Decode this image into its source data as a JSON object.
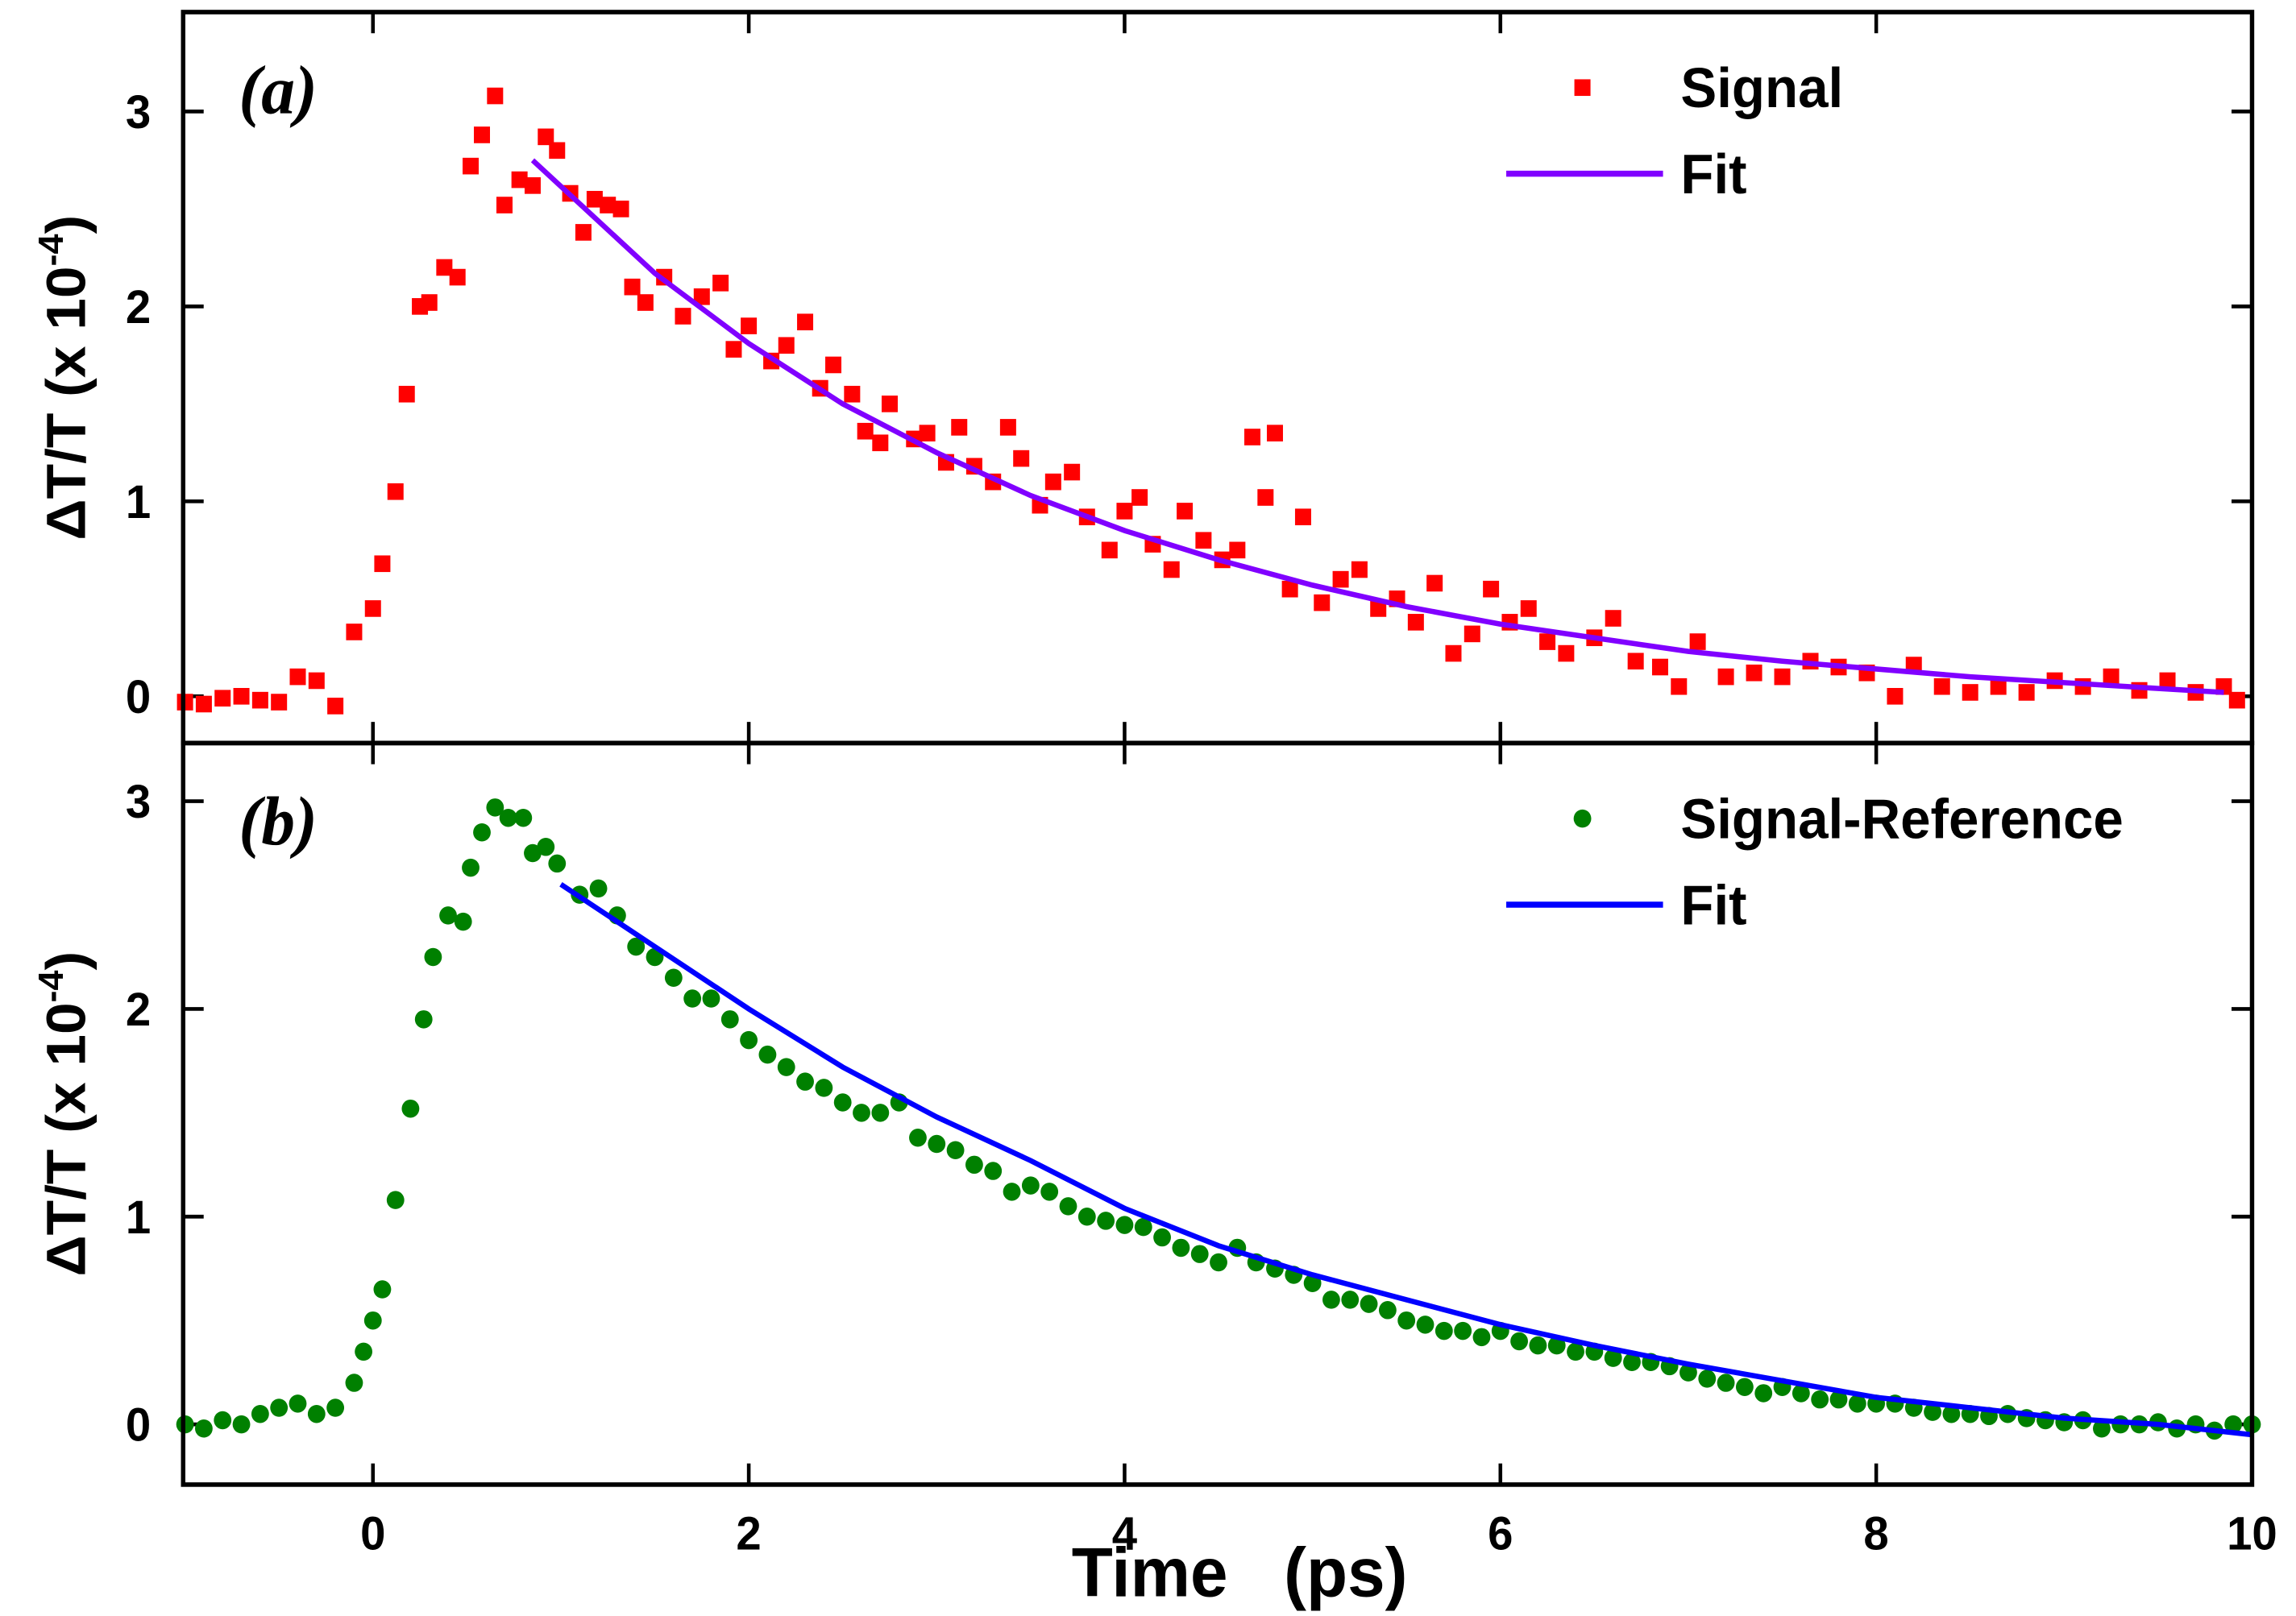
{
  "chart_data": [
    {
      "type": "scatter",
      "label": "(a)",
      "ylabel": {
        "text": "ΔT/T  (x  10",
        "superscript": "-4",
        "close": ")"
      },
      "xlim": [
        -1.01,
        10
      ],
      "xticks": [
        0,
        2,
        4,
        6,
        8,
        10
      ],
      "ylim": [
        -0.24,
        3.51
      ],
      "yticks": [
        0,
        1,
        2,
        3
      ],
      "legend": "upper right",
      "series": [
        {
          "name": "Signal",
          "color": "#ff0000",
          "marker": "square",
          "x": [
            -1,
            -0.9,
            -0.8,
            -0.7,
            -0.6,
            -0.5,
            -0.4,
            -0.3,
            -0.2,
            -0.1,
            0,
            0.05,
            0.12,
            0.18,
            0.25,
            0.3,
            0.38,
            0.45,
            0.52,
            0.58,
            0.65,
            0.7,
            0.78,
            0.85,
            0.92,
            0.98,
            1.05,
            1.12,
            1.18,
            1.25,
            1.32,
            1.38,
            1.45,
            1.55,
            1.65,
            1.75,
            1.85,
            1.92,
            2.0,
            2.12,
            2.2,
            2.3,
            2.38,
            2.45,
            2.55,
            2.62,
            2.7,
            2.75,
            2.88,
            2.95,
            3.05,
            3.12,
            3.2,
            3.3,
            3.38,
            3.45,
            3.55,
            3.62,
            3.72,
            3.8,
            3.92,
            4.0,
            4.08,
            4.15,
            4.25,
            4.32,
            4.42,
            4.52,
            4.6,
            4.68,
            4.75,
            4.8,
            4.88,
            4.95,
            5.05,
            5.15,
            5.25,
            5.35,
            5.45,
            5.55,
            5.65,
            5.75,
            5.85,
            5.95,
            6.05,
            6.15,
            6.25,
            6.35,
            6.5,
            6.6,
            6.72,
            6.85,
            6.95,
            7.05,
            7.2,
            7.35,
            7.5,
            7.65,
            7.8,
            7.95,
            8.1,
            8.2,
            8.35,
            8.5,
            8.65,
            8.8,
            8.95,
            9.1,
            9.25,
            9.4,
            9.55,
            9.7,
            9.85,
            9.92
          ],
          "values": [
            -0.03,
            -0.04,
            -0.01,
            0,
            -0.02,
            -0.03,
            0.1,
            0.08,
            -0.05,
            0.33,
            0.45,
            0.68,
            1.05,
            1.55,
            2.0,
            2.02,
            2.2,
            2.15,
            2.72,
            2.88,
            3.08,
            2.52,
            2.65,
            2.62,
            2.87,
            2.8,
            2.58,
            2.38,
            2.55,
            2.52,
            2.5,
            2.1,
            2.02,
            2.15,
            1.95,
            2.05,
            2.12,
            1.78,
            1.9,
            1.72,
            1.8,
            1.92,
            1.58,
            1.7,
            1.55,
            1.36,
            1.3,
            1.5,
            1.32,
            1.35,
            1.2,
            1.38,
            1.18,
            1.1,
            1.38,
            1.22,
            0.98,
            1.1,
            1.15,
            0.92,
            0.75,
            0.95,
            1.02,
            0.78,
            0.65,
            0.95,
            0.8,
            0.7,
            0.75,
            1.33,
            1.02,
            1.35,
            0.55,
            0.92,
            0.48,
            0.6,
            0.65,
            0.45,
            0.5,
            0.38,
            0.58,
            0.22,
            0.32,
            0.55,
            0.38,
            0.45,
            0.28,
            0.22,
            0.3,
            0.4,
            0.18,
            0.15,
            0.05,
            0.28,
            0.1,
            0.12,
            0.1,
            0.18,
            0.15,
            0.12,
            0.0,
            0.16,
            0.05,
            0.02,
            0.05,
            0.02,
            0.08,
            0.05,
            0.1,
            0.03,
            0.08,
            0.02,
            0.05,
            -0.02
          ]
        },
        {
          "name": "Fit",
          "color": "#8000ff",
          "marker": "line",
          "x": [
            0.85,
            1.5,
            2,
            2.5,
            3,
            3.5,
            4,
            4.5,
            5,
            5.5,
            6,
            6.5,
            7,
            7.5,
            8,
            8.5,
            9,
            9.5,
            9.85
          ],
          "values": [
            2.75,
            2.17,
            1.81,
            1.5,
            1.25,
            1.03,
            0.85,
            0.7,
            0.57,
            0.46,
            0.37,
            0.3,
            0.23,
            0.18,
            0.14,
            0.1,
            0.07,
            0.04,
            0.02
          ]
        }
      ]
    },
    {
      "type": "scatter",
      "label": "(b)",
      "ylabel": {
        "text": "ΔT/T  (x  10",
        "superscript": "-4",
        "close": ")"
      },
      "xlabel": "Time   (ps)",
      "xlim": [
        -1.01,
        10
      ],
      "xticks": [
        0,
        2,
        4,
        6,
        8,
        10
      ],
      "ylim": [
        -0.29,
        3.28
      ],
      "yticks": [
        0,
        1,
        2,
        3
      ],
      "legend": "upper right",
      "series": [
        {
          "name": "Signal-Reference",
          "color": "#008000",
          "marker": "circle",
          "x": [
            -1,
            -0.9,
            -0.8,
            -0.7,
            -0.6,
            -0.5,
            -0.4,
            -0.3,
            -0.2,
            -0.1,
            -0.05,
            0,
            0.05,
            0.12,
            0.2,
            0.27,
            0.32,
            0.4,
            0.48,
            0.52,
            0.58,
            0.65,
            0.72,
            0.8,
            0.85,
            0.92,
            0.98,
            1.1,
            1.2,
            1.3,
            1.4,
            1.5,
            1.6,
            1.7,
            1.8,
            1.9,
            2.0,
            2.1,
            2.2,
            2.3,
            2.4,
            2.5,
            2.6,
            2.7,
            2.8,
            2.9,
            3.0,
            3.1,
            3.2,
            3.3,
            3.4,
            3.5,
            3.6,
            3.7,
            3.8,
            3.9,
            4.0,
            4.1,
            4.2,
            4.3,
            4.4,
            4.5,
            4.6,
            4.7,
            4.8,
            4.9,
            5.0,
            5.1,
            5.2,
            5.3,
            5.4,
            5.5,
            5.6,
            5.7,
            5.8,
            5.9,
            6.0,
            6.1,
            6.2,
            6.3,
            6.4,
            6.5,
            6.6,
            6.7,
            6.8,
            6.9,
            7.0,
            7.1,
            7.2,
            7.3,
            7.4,
            7.5,
            7.6,
            7.7,
            7.8,
            7.9,
            8.0,
            8.1,
            8.2,
            8.3,
            8.4,
            8.5,
            8.6,
            8.7,
            8.8,
            8.9,
            9.0,
            9.1,
            9.2,
            9.3,
            9.4,
            9.5,
            9.6,
            9.7,
            9.8,
            9.9,
            10
          ],
          "values": [
            0,
            -0.02,
            0.02,
            0.0,
            0.05,
            0.08,
            0.1,
            0.05,
            0.08,
            0.2,
            0.35,
            0.5,
            0.65,
            1.08,
            1.52,
            1.95,
            2.25,
            2.45,
            2.42,
            2.68,
            2.85,
            2.97,
            2.92,
            2.92,
            2.75,
            2.78,
            2.7,
            2.55,
            2.58,
            2.45,
            2.3,
            2.25,
            2.15,
            2.05,
            2.05,
            1.95,
            1.85,
            1.78,
            1.72,
            1.65,
            1.62,
            1.55,
            1.5,
            1.5,
            1.55,
            1.38,
            1.35,
            1.32,
            1.25,
            1.22,
            1.12,
            1.15,
            1.12,
            1.05,
            1.0,
            0.98,
            0.96,
            0.95,
            0.9,
            0.85,
            0.82,
            0.78,
            0.85,
            0.78,
            0.75,
            0.72,
            0.68,
            0.6,
            0.6,
            0.58,
            0.55,
            0.5,
            0.48,
            0.45,
            0.45,
            0.42,
            0.45,
            0.4,
            0.38,
            0.38,
            0.35,
            0.35,
            0.32,
            0.3,
            0.3,
            0.28,
            0.25,
            0.22,
            0.2,
            0.18,
            0.15,
            0.18,
            0.15,
            0.12,
            0.12,
            0.1,
            0.1,
            0.1,
            0.08,
            0.06,
            0.05,
            0.05,
            0.04,
            0.05,
            0.03,
            0.02,
            0.01,
            0.02,
            -0.02,
            0.0,
            0.0,
            0.01,
            -0.02,
            0.0,
            -0.03,
            0.0,
            0.0
          ]
        },
        {
          "name": "Fit",
          "color": "#0000ff",
          "marker": "line",
          "x": [
            1.0,
            1.5,
            2,
            2.5,
            3,
            3.5,
            4,
            4.5,
            5,
            5.5,
            6,
            6.5,
            7,
            7.5,
            8,
            8.5,
            9,
            9.5,
            10
          ],
          "values": [
            2.6,
            2.3,
            2.0,
            1.72,
            1.48,
            1.27,
            1.04,
            0.86,
            0.72,
            0.6,
            0.48,
            0.38,
            0.29,
            0.21,
            0.13,
            0.08,
            0.03,
            0.0,
            -0.05
          ]
        }
      ]
    }
  ]
}
